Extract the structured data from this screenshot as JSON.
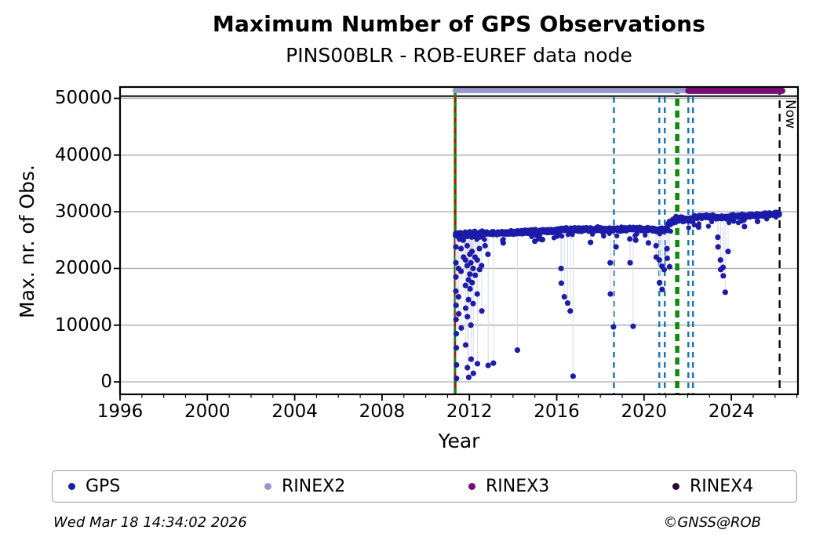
{
  "header": {
    "title": "Maximum Number of GPS Observations",
    "subtitle": "PINS00BLR - ROB-EUREF data node"
  },
  "footer": {
    "timestamp": "Wed Mar 18 14:34:02 2026",
    "credit": "©GNSS@ROB"
  },
  "legend": {
    "items": [
      {
        "label": "GPS",
        "color": "#1c1ca8"
      },
      {
        "label": "RINEX2",
        "color": "#9898cc"
      },
      {
        "label": "RINEX3",
        "color": "#7a0a7a"
      },
      {
        "label": "RINEX4",
        "color": "#2b0b33"
      }
    ]
  },
  "chart_data": {
    "type": "scatter",
    "title": "Maximum Number of GPS Observations",
    "subtitle": "PINS00BLR - ROB-EUREF data node",
    "xlabel": "Year",
    "ylabel": "Max. nr. of Obs.",
    "xlim": [
      1996,
      2027.05
    ],
    "ylim": [
      -2200,
      52000
    ],
    "xticks_major": [
      1996,
      2000,
      2004,
      2008,
      2012,
      2016,
      2020,
      2024
    ],
    "yticks": [
      0,
      10000,
      20000,
      30000,
      40000,
      50000
    ],
    "grid": "horizontal-gray",
    "legend_position": "bottom",
    "reference_line_y": 50400,
    "now_x": 2026.21,
    "now_label": "Now",
    "colors": {
      "gps": "#1c1ca8",
      "rinex2": "#9898cc",
      "rinex3": "#7a0a7a",
      "rinex4": "#2b0b33",
      "grid": "#b0b0b0",
      "stem": "#d9d9ef",
      "vline_blue": "#1f77b4",
      "vline_green": "#0e8a0e",
      "vline_red": "#dd0000",
      "now_line": "#000000"
    },
    "series": {
      "gps": {
        "name": "GPS",
        "marker_radius": 3.2,
        "band_segments": [
          [
            2011.35,
            2012.6,
            25900,
            26100,
            650
          ],
          [
            2012.6,
            2014.0,
            26150,
            26350,
            420
          ],
          [
            2014.0,
            2016.0,
            26350,
            26650,
            420
          ],
          [
            2016.0,
            2018.0,
            26900,
            26950,
            460
          ],
          [
            2018.0,
            2019.2,
            26850,
            26950,
            460
          ],
          [
            2019.2,
            2020.4,
            27000,
            26950,
            420
          ],
          [
            2020.4,
            2021.1,
            26800,
            26900,
            430
          ],
          [
            2021.1,
            2021.5,
            27800,
            28600,
            750
          ],
          [
            2021.5,
            2022.3,
            28700,
            28700,
            470
          ],
          [
            2022.3,
            2023.3,
            29100,
            29200,
            380
          ],
          [
            2023.3,
            2024.0,
            28900,
            29100,
            420
          ],
          [
            2024.0,
            2025.1,
            29200,
            29350,
            380
          ],
          [
            2025.1,
            2026.21,
            29400,
            29700,
            420
          ]
        ],
        "dips": [
          [
            2011.38,
            23800
          ],
          [
            2011.38,
            21000
          ],
          [
            2011.38,
            18500
          ],
          [
            2011.38,
            16000
          ],
          [
            2011.39,
            13500
          ],
          [
            2011.39,
            11000
          ],
          [
            2011.4,
            8500
          ],
          [
            2011.4,
            6000
          ],
          [
            2011.41,
            3000
          ],
          [
            2011.41,
            600
          ],
          [
            2011.5,
            20000
          ],
          [
            2011.5,
            15000
          ],
          [
            2011.51,
            12000
          ],
          [
            2011.62,
            23500
          ],
          [
            2011.62,
            19500
          ],
          [
            2011.63,
            9500
          ],
          [
            2011.72,
            25000
          ],
          [
            2011.73,
            22000
          ],
          [
            2011.82,
            21500
          ],
          [
            2011.82,
            17000
          ],
          [
            2011.83,
            13000
          ],
          [
            2011.83,
            6500
          ],
          [
            2011.9,
            24000
          ],
          [
            2011.9,
            20500
          ],
          [
            2011.91,
            11500
          ],
          [
            2011.91,
            2500
          ],
          [
            2011.96,
            18000
          ],
          [
            2011.96,
            14500
          ],
          [
            2011.97,
            800
          ],
          [
            2012.02,
            22500
          ],
          [
            2012.02,
            19000
          ],
          [
            2012.03,
            16400
          ],
          [
            2012.07,
            21000
          ],
          [
            2012.07,
            10000
          ],
          [
            2012.08,
            4000
          ],
          [
            2012.12,
            23000
          ],
          [
            2012.13,
            17500
          ],
          [
            2012.17,
            20000
          ],
          [
            2012.17,
            13800
          ],
          [
            2012.18,
            1500
          ],
          [
            2012.26,
            22000
          ],
          [
            2012.27,
            18800
          ],
          [
            2012.36,
            21500
          ],
          [
            2012.36,
            15500
          ],
          [
            2012.37,
            3200
          ],
          [
            2012.46,
            23500
          ],
          [
            2012.47,
            19800
          ],
          [
            2012.56,
            20500
          ],
          [
            2012.57,
            12500
          ],
          [
            2012.72,
            24000
          ],
          [
            2012.85,
            22500
          ],
          [
            2012.86,
            2900
          ],
          [
            2013.1,
            3300
          ],
          [
            2013.55,
            24500
          ],
          [
            2014.2,
            5600
          ],
          [
            2015.0,
            24800
          ],
          [
            2015.35,
            25100
          ],
          [
            2016.2,
            20000
          ],
          [
            2016.21,
            17400
          ],
          [
            2016.35,
            15000
          ],
          [
            2016.5,
            13900
          ],
          [
            2016.62,
            12500
          ],
          [
            2016.75,
            1000
          ],
          [
            2017.55,
            24600
          ],
          [
            2018.45,
            21000
          ],
          [
            2018.46,
            15500
          ],
          [
            2018.6,
            9700
          ],
          [
            2018.72,
            23800
          ],
          [
            2019.35,
            25200
          ],
          [
            2019.36,
            21000
          ],
          [
            2019.5,
            9800
          ],
          [
            2019.62,
            25000
          ],
          [
            2020.2,
            24500
          ],
          [
            2020.55,
            24000
          ],
          [
            2020.56,
            22000
          ],
          [
            2020.7,
            21500
          ],
          [
            2020.71,
            17500
          ],
          [
            2020.82,
            20400
          ],
          [
            2020.83,
            16300
          ],
          [
            2020.92,
            19800
          ],
          [
            2021.05,
            23500
          ],
          [
            2021.06,
            21800
          ],
          [
            2021.17,
            20300
          ],
          [
            2022.5,
            27300
          ],
          [
            2023.38,
            25500
          ],
          [
            2023.39,
            23800
          ],
          [
            2023.5,
            21500
          ],
          [
            2023.51,
            19800
          ],
          [
            2023.62,
            20200
          ],
          [
            2023.63,
            18700
          ],
          [
            2023.72,
            15800
          ],
          [
            2023.85,
            23000
          ],
          [
            2024.6,
            27400
          ],
          [
            2025.2,
            28300
          ]
        ]
      },
      "rinex2": {
        "name": "RINEX2",
        "from": 2011.35,
        "to": 2022.25,
        "value": 51420,
        "thickness": 7
      },
      "rinex3": {
        "name": "RINEX3",
        "from": 2022.03,
        "to": 2026.33,
        "value": 51330,
        "thickness": 8
      },
      "rinex4": {
        "name": "RINEX4",
        "visible_points": 0
      }
    },
    "vertical_lines": [
      {
        "x": 2011.35,
        "color": "#0e8a0e",
        "style": "solid",
        "width": 3.5
      },
      {
        "x": 2011.35,
        "color": "#dd0000",
        "style": "dashed",
        "width": 2
      },
      {
        "x": 2018.62,
        "color": "#1f77b4",
        "style": "dashed",
        "width": 2.5
      },
      {
        "x": 2020.7,
        "color": "#1f77b4",
        "style": "dashed",
        "width": 2.5
      },
      {
        "x": 2020.95,
        "color": "#1f77b4",
        "style": "dashed",
        "width": 2.5
      },
      {
        "x": 2021.52,
        "color": "#0e8a0e",
        "style": "dashed",
        "width": 5.5
      },
      {
        "x": 2022.03,
        "color": "#1f77b4",
        "style": "dashed",
        "width": 2.5
      },
      {
        "x": 2022.24,
        "color": "#1f77b4",
        "style": "dashed",
        "width": 2.5
      }
    ]
  }
}
